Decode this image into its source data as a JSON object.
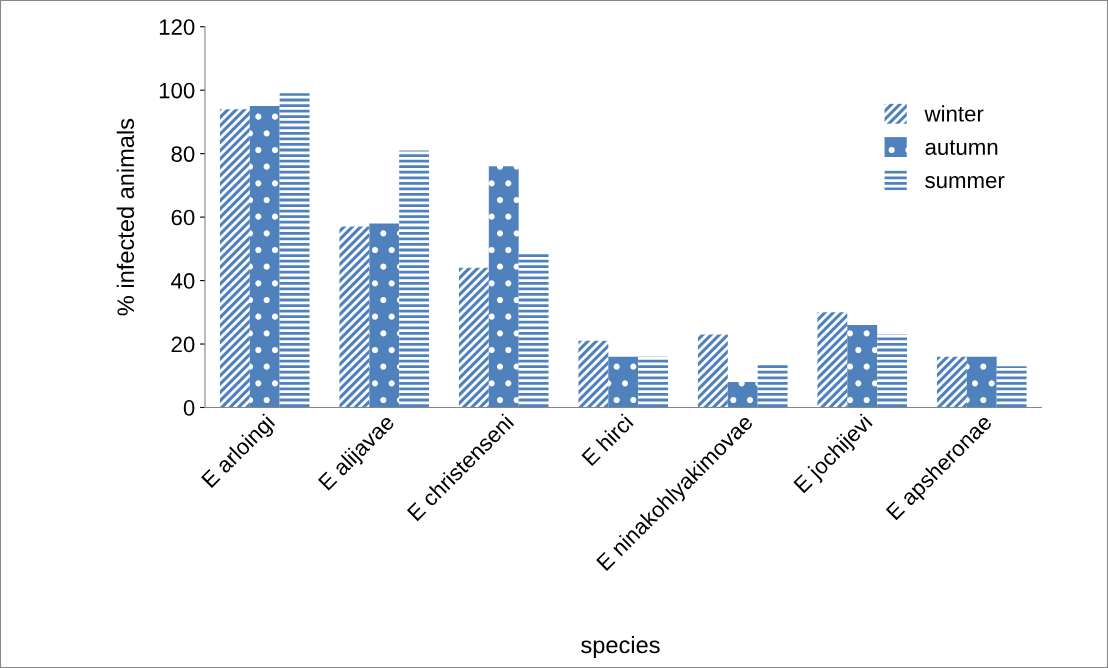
{
  "chart_data": {
    "type": "bar",
    "xlabel": "species",
    "ylabel": "% infected animals",
    "categories": [
      "E arloingi",
      "E alijavae",
      "E christenseni",
      "E hirci",
      "E ninakohlyakimovae",
      "E jochijevi",
      "E apsheronae"
    ],
    "series": [
      {
        "name": "winter",
        "color": "#4f81bd",
        "values": [
          94,
          57,
          44,
          21,
          23,
          30,
          16
        ]
      },
      {
        "name": "autumn",
        "color": "#4f81bd",
        "values": [
          95,
          58,
          76,
          16,
          8,
          26,
          16
        ]
      },
      {
        "name": "summer",
        "color": "#4f81bd",
        "values": [
          99,
          81,
          49,
          16,
          14,
          23,
          13
        ]
      }
    ],
    "ylim": [
      0,
      120
    ],
    "yticks": [
      0,
      20,
      40,
      60,
      80,
      100,
      120
    ],
    "grid": false,
    "legend": "top right"
  }
}
